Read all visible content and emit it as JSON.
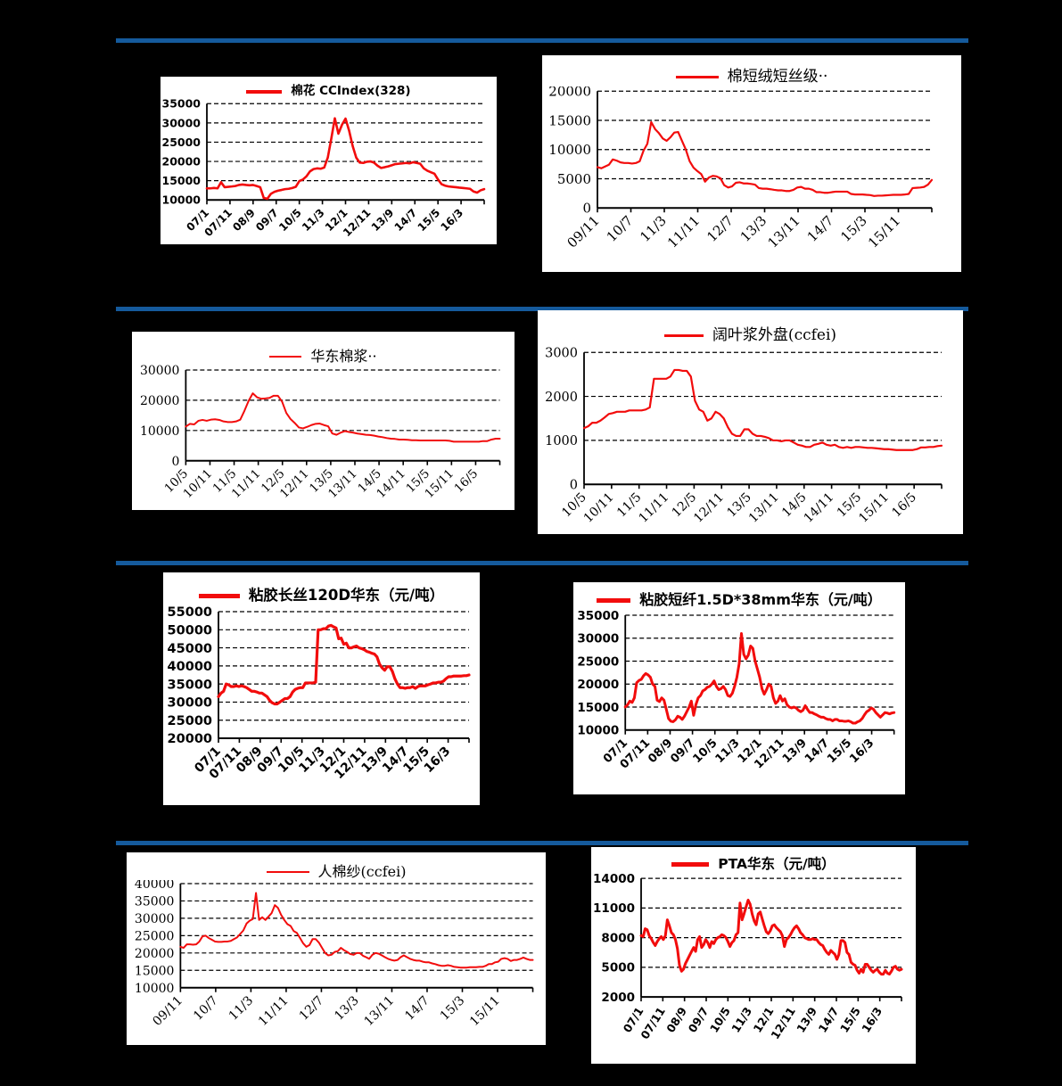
{
  "page": {
    "background": "#000000",
    "divider_color": "#155a9c",
    "panel_background": "#ffffff",
    "line_color": "#f20c0c",
    "grid_color": "#000000"
  },
  "chart_data": [
    {
      "type": "line",
      "title": "棉花 CCIndex(328)",
      "ylim": [
        10000,
        35000
      ],
      "yticks": [
        10000,
        15000,
        20000,
        25000,
        30000,
        35000
      ],
      "xticklabels": [
        "07/1",
        "07/11",
        "08/9",
        "09/7",
        "10/5",
        "11/3",
        "12/1",
        "12/11",
        "13/9",
        "14/7",
        "15/5",
        "16/3"
      ],
      "grid": "dashed",
      "legend_position": "top",
      "values": [
        13000,
        13000,
        13100,
        13000,
        14600,
        13300,
        13400,
        13500,
        13600,
        13900,
        14000,
        13900,
        13800,
        13900,
        13600,
        13300,
        10500,
        10300,
        11600,
        12100,
        12400,
        12600,
        12800,
        12900,
        13100,
        13400,
        14900,
        15300,
        16100,
        17400,
        18000,
        18200,
        18100,
        18400,
        21000,
        26000,
        31200,
        27200,
        29500,
        31100,
        28000,
        24000,
        21000,
        19700,
        19600,
        19900,
        20000,
        19700,
        18900,
        18300,
        18500,
        18700,
        19000,
        19300,
        19400,
        19500,
        19600,
        19500,
        19800,
        19600,
        19400,
        18200,
        17600,
        17200,
        16800,
        15300,
        14100,
        13700,
        13500,
        13400,
        13300,
        13200,
        13100,
        13000,
        12900,
        12200,
        11900,
        12500,
        12800
      ]
    },
    {
      "type": "line",
      "title": "棉短绒短丝级··",
      "ylim": [
        0,
        20000
      ],
      "yticks": [
        0,
        5000,
        10000,
        15000,
        20000
      ],
      "xticklabels": [
        "09/11",
        "10/7",
        "11/3",
        "11/11",
        "12/7",
        "13/3",
        "13/11",
        "14/7",
        "15/3",
        "15/11"
      ],
      "grid": "dashed",
      "legend_position": "top",
      "values": [
        7000,
        6800,
        7100,
        7400,
        8300,
        8100,
        7800,
        7700,
        7700,
        7600,
        7700,
        8000,
        9800,
        11000,
        14700,
        13500,
        12800,
        11900,
        11500,
        12100,
        12900,
        13000,
        11500,
        10000,
        8000,
        6900,
        6300,
        5800,
        4500,
        5200,
        5500,
        5400,
        5100,
        3900,
        3500,
        3700,
        4300,
        4400,
        4200,
        4200,
        4100,
        4000,
        3400,
        3300,
        3300,
        3200,
        3100,
        3000,
        3000,
        2900,
        2900,
        3100,
        3500,
        3600,
        3300,
        3300,
        3100,
        2700,
        2700,
        2600,
        2600,
        2700,
        2800,
        2800,
        2800,
        2800,
        2400,
        2300,
        2300,
        2300,
        2250,
        2200,
        2050,
        2100,
        2100,
        2150,
        2200,
        2250,
        2250,
        2250,
        2300,
        2400,
        3400,
        3450,
        3500,
        3600,
        4000,
        4800
      ]
    },
    {
      "type": "line",
      "title": "华东棉浆··",
      "ylim": [
        0,
        30000
      ],
      "yticks": [
        0,
        10000,
        20000,
        30000
      ],
      "xticklabels": [
        "10/5",
        "10/11",
        "11/5",
        "11/11",
        "12/5",
        "12/11",
        "13/5",
        "13/11",
        "14/5",
        "14/11",
        "15/5",
        "15/11",
        "16/5"
      ],
      "grid": "dashed",
      "legend_position": "top",
      "values": [
        11300,
        12200,
        12000,
        13200,
        13500,
        13200,
        13600,
        13700,
        13500,
        13000,
        12800,
        12800,
        13000,
        13600,
        16500,
        19800,
        22300,
        21000,
        20500,
        20600,
        20800,
        21500,
        21500,
        19500,
        15800,
        13800,
        12500,
        11000,
        10700,
        11200,
        11800,
        12200,
        12300,
        11800,
        11400,
        9000,
        8600,
        9300,
        9800,
        9500,
        9300,
        9000,
        8800,
        8600,
        8500,
        8300,
        8000,
        7800,
        7500,
        7300,
        7200,
        7000,
        7000,
        6900,
        6800,
        6800,
        6700,
        6700,
        6700,
        6700,
        6700,
        6700,
        6700,
        6600,
        6300,
        6300,
        6300,
        6300,
        6300,
        6300,
        6300,
        6500,
        6500,
        7000,
        7300,
        7300
      ]
    },
    {
      "type": "line",
      "title": "阔叶浆外盘(ccfei)",
      "ylim": [
        0,
        3000
      ],
      "yticks": [
        0,
        1000,
        2000,
        3000
      ],
      "xticklabels": [
        "10/5",
        "10/11",
        "11/5",
        "11/11",
        "12/5",
        "12/11",
        "13/5",
        "13/11",
        "14/5",
        "14/11",
        "15/5",
        "15/11",
        "16/5"
      ],
      "grid": "dashed",
      "legend_position": "top",
      "values": [
        1280,
        1320,
        1400,
        1400,
        1450,
        1520,
        1600,
        1620,
        1650,
        1650,
        1650,
        1680,
        1680,
        1680,
        1680,
        1700,
        1750,
        2400,
        2400,
        2400,
        2400,
        2450,
        2600,
        2600,
        2580,
        2580,
        2450,
        1900,
        1700,
        1650,
        1450,
        1500,
        1650,
        1600,
        1500,
        1300,
        1150,
        1100,
        1100,
        1250,
        1250,
        1150,
        1100,
        1100,
        1080,
        1050,
        1000,
        1000,
        980,
        1000,
        1000,
        950,
        900,
        880,
        850,
        850,
        900,
        920,
        950,
        900,
        880,
        900,
        850,
        830,
        850,
        830,
        850,
        850,
        840,
        830,
        830,
        820,
        810,
        800,
        800,
        790,
        780,
        780,
        780,
        780,
        780,
        800,
        840,
        840,
        850,
        850,
        870,
        880
      ]
    },
    {
      "type": "line",
      "title": "粘胶长丝120D华东（元/吨）",
      "ylim": [
        20000,
        55000
      ],
      "yticks": [
        20000,
        25000,
        30000,
        35000,
        40000,
        45000,
        50000,
        55000
      ],
      "xticklabels": [
        "07/1",
        "07/11",
        "08/9",
        "09/7",
        "10/5",
        "11/3",
        "12/1",
        "12/11",
        "13/9",
        "14/7",
        "15/5",
        "16/3"
      ],
      "grid": "dashed",
      "legend_position": "top",
      "values": [
        31500,
        32500,
        33000,
        35000,
        34800,
        34300,
        34300,
        34500,
        34300,
        34500,
        34300,
        34000,
        33500,
        33000,
        33000,
        32800,
        32500,
        32500,
        32000,
        31500,
        30500,
        29800,
        29500,
        29500,
        30000,
        30500,
        31000,
        31000,
        31500,
        32800,
        33500,
        33800,
        34000,
        34000,
        35300,
        35300,
        35300,
        35300,
        35500,
        50000,
        50000,
        50300,
        50300,
        51000,
        51200,
        50800,
        50500,
        47500,
        47700,
        46000,
        46300,
        45000,
        45000,
        45300,
        45500,
        45000,
        44800,
        44500,
        44000,
        43800,
        43500,
        43300,
        42500,
        40500,
        39500,
        38800,
        39800,
        39800,
        38500,
        36500,
        35000,
        34000,
        34000,
        33800,
        34000,
        34000,
        34300,
        33800,
        34300,
        34500,
        34500,
        34500,
        34800,
        35000,
        35300,
        35300,
        35500,
        35500,
        35800,
        36500,
        37000,
        37000,
        37200,
        37200,
        37200,
        37200,
        37300,
        37300,
        37500
      ]
    },
    {
      "type": "line",
      "title": "粘胶短纤1.5D*38mm华东（元/吨）",
      "ylim": [
        10000,
        35000
      ],
      "yticks": [
        10000,
        15000,
        20000,
        25000,
        30000,
        35000
      ],
      "xticklabels": [
        "07/1",
        "07/11",
        "08/9",
        "09/7",
        "10/5",
        "11/3",
        "12/1",
        "12/11",
        "13/9",
        "14/7",
        "15/5",
        "16/3"
      ],
      "grid": "dashed",
      "legend_position": "top",
      "values": [
        15000,
        15500,
        16300,
        16000,
        17000,
        20300,
        20800,
        21000,
        21800,
        22300,
        22000,
        21500,
        20000,
        19500,
        16500,
        16200,
        17000,
        16500,
        14500,
        12500,
        11900,
        11800,
        12200,
        13000,
        12800,
        12300,
        13000,
        14000,
        15000,
        16300,
        13200,
        15500,
        17000,
        17500,
        18500,
        18800,
        19300,
        19500,
        20000,
        20700,
        19500,
        18800,
        19000,
        19500,
        18800,
        17500,
        17300,
        18000,
        19500,
        21500,
        24500,
        31000,
        26500,
        25500,
        26300,
        28300,
        27800,
        25000,
        23300,
        21500,
        19000,
        17800,
        18800,
        20000,
        19500,
        17000,
        15800,
        16300,
        17500,
        16300,
        16800,
        15500,
        15000,
        14800,
        15000,
        14800,
        14300,
        14000,
        14300,
        15300,
        14500,
        13800,
        13800,
        13500,
        13300,
        13000,
        12800,
        12800,
        12500,
        12300,
        12300,
        12000,
        12300,
        12300,
        12000,
        12000,
        11900,
        11900,
        12000,
        11800,
        11500,
        11500,
        11800,
        12000,
        12500,
        13300,
        14000,
        14300,
        14800,
        14500,
        13800,
        13300,
        12800,
        13300,
        13800,
        13700,
        13500,
        13700,
        13800
      ]
    },
    {
      "type": "line",
      "title": "人棉纱(ccfei)",
      "ylim": [
        10000,
        40000
      ],
      "yticks": [
        10000,
        15000,
        20000,
        25000,
        30000,
        35000,
        40000
      ],
      "xticklabels": [
        "09/11",
        "10/7",
        "11/3",
        "11/11",
        "12/7",
        "13/3",
        "13/11",
        "14/7",
        "15/3",
        "15/11"
      ],
      "grid": "dashed",
      "legend_position": "top",
      "values": [
        21800,
        21500,
        22500,
        22500,
        22400,
        22500,
        23300,
        24800,
        25000,
        24300,
        23800,
        23300,
        23200,
        23200,
        23300,
        23300,
        23500,
        24000,
        24500,
        25500,
        26500,
        28500,
        29300,
        29800,
        37300,
        29500,
        30300,
        29500,
        30500,
        31500,
        33800,
        33000,
        31000,
        29500,
        28300,
        27800,
        26300,
        25800,
        24300,
        22800,
        21800,
        22300,
        24000,
        24000,
        23000,
        21500,
        20000,
        19300,
        19500,
        20300,
        20500,
        21500,
        20800,
        20300,
        19700,
        19500,
        20000,
        20000,
        19200,
        18800,
        18300,
        19500,
        20000,
        19800,
        19300,
        18800,
        18300,
        18000,
        17800,
        18000,
        18800,
        19300,
        18800,
        18300,
        18000,
        17800,
        17800,
        17500,
        17300,
        17300,
        17000,
        16800,
        16500,
        16300,
        16300,
        16500,
        16300,
        16000,
        15900,
        15800,
        15800,
        15800,
        15900,
        15900,
        15900,
        16000,
        16000,
        16300,
        16800,
        16800,
        17300,
        17500,
        18300,
        18500,
        18300,
        17700,
        18000,
        18000,
        18300,
        18700,
        18300,
        18000,
        18000
      ]
    },
    {
      "type": "line",
      "title": "PTA华东（元/吨）",
      "ylim": [
        2000,
        14000
      ],
      "yticks": [
        2000,
        5000,
        8000,
        11000,
        14000
      ],
      "xticklabels": [
        "07/1",
        "07/11",
        "08/9",
        "09/7",
        "10/5",
        "11/3",
        "12/1",
        "12/11",
        "13/9",
        "14/7",
        "15/5",
        "16/3"
      ],
      "grid": "dashed",
      "legend_position": "top",
      "values": [
        8200,
        8100,
        8900,
        8800,
        8200,
        7900,
        7500,
        7200,
        7600,
        7900,
        8100,
        7800,
        8200,
        9800,
        9200,
        8500,
        8300,
        7800,
        6900,
        5200,
        4600,
        4800,
        5400,
        5800,
        6200,
        6600,
        7000,
        6600,
        7800,
        8100,
        7000,
        7300,
        7800,
        7500,
        7000,
        7600,
        7400,
        7800,
        8000,
        8100,
        8300,
        8200,
        8000,
        7600,
        7100,
        7500,
        7700,
        8300,
        8500,
        11500,
        9800,
        10400,
        11100,
        11800,
        11400,
        10400,
        9700,
        9300,
        10400,
        10600,
        9900,
        9200,
        8600,
        8400,
        8700,
        9200,
        9300,
        9000,
        8800,
        8600,
        8200,
        7100,
        7800,
        8000,
        8300,
        8700,
        9000,
        9200,
        8900,
        8500,
        8300,
        8000,
        7900,
        7800,
        7800,
        7900,
        7800,
        7800,
        7500,
        7300,
        7200,
        6800,
        6500,
        6300,
        6700,
        6500,
        6300,
        5800,
        6300,
        7700,
        7700,
        7500,
        6500,
        6300,
        5500,
        5300,
        5200,
        4700,
        4400,
        4800,
        4500,
        5300,
        5300,
        5000,
        4700,
        4500,
        4700,
        4800,
        4500,
        4300,
        4300,
        4700,
        4400,
        4300,
        4600,
        5000,
        5100,
        4800,
        4700,
        4800
      ]
    }
  ]
}
